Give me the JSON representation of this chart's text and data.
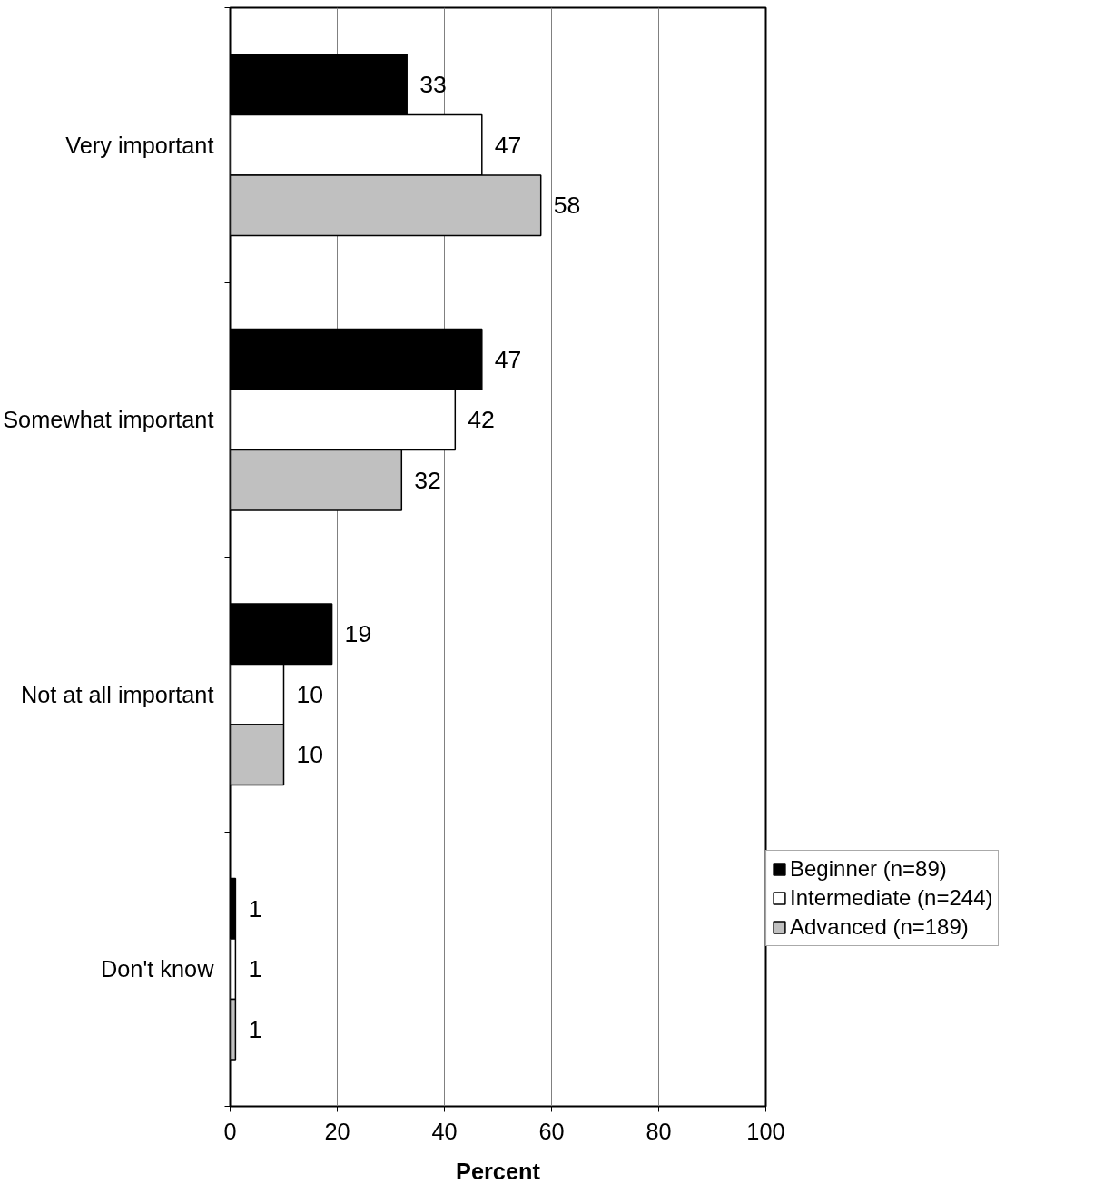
{
  "chart_data": {
    "type": "bar",
    "orientation": "horizontal",
    "xlabel": "Percent",
    "categories": [
      "Very important",
      "Somewhat important",
      "Not at all important",
      "Don't know"
    ],
    "series": [
      {
        "name": "Beginner (n=89)",
        "color": "#000000",
        "values": [
          33,
          47,
          19,
          1
        ]
      },
      {
        "name": "Intermediate (n=244)",
        "color": "#ffffff",
        "values": [
          47,
          42,
          10,
          1
        ]
      },
      {
        "name": "Advanced (n=189)",
        "color": "#c0c0c0",
        "values": [
          58,
          32,
          10,
          1
        ]
      }
    ],
    "xlim": [
      0,
      100
    ],
    "xticks": [
      0,
      20,
      40,
      60,
      80,
      100
    ],
    "grid": "x",
    "legend": "right",
    "data_labels": true
  }
}
